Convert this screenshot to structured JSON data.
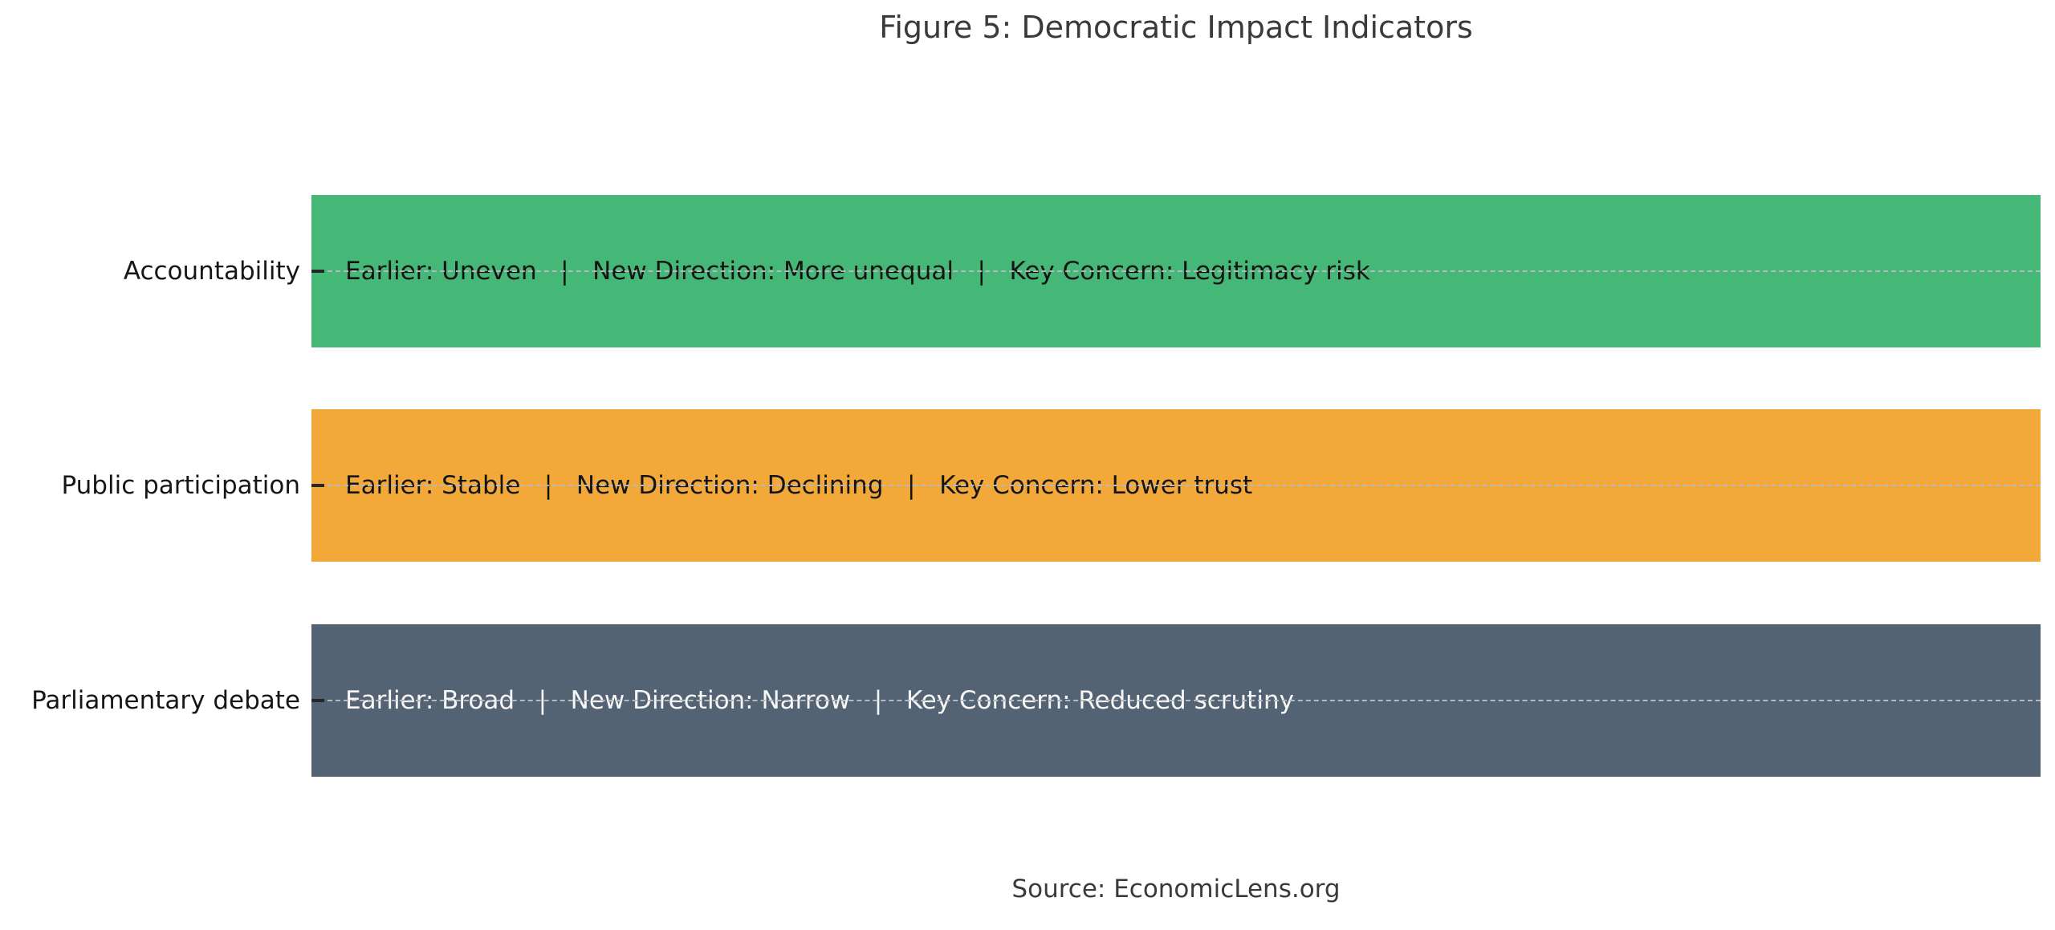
{
  "title": "Figure 5: Democratic Impact Indicators",
  "source_note": "Source: EconomicLens.org",
  "colors": {
    "background": "#ffffff",
    "title_text": "#3a3a3a",
    "axis_label_text": "#161616",
    "grid_line": "#b7babd",
    "tick_mark": "#262626",
    "bar_accountability": "#45b878",
    "bar_public_participation": "#f2a93a",
    "bar_parliamentary_debate": "#546373",
    "bar_text_dark": "#141414",
    "bar_text_light": "#f7f7f7",
    "source_text": "#3a3a3a"
  },
  "chart_data": {
    "type": "bar",
    "orientation": "horizontal",
    "title": "Figure 5: Democratic Impact Indicators",
    "xlabel": "",
    "ylabel": "",
    "legend": "none",
    "grid": "dashed horizontal line through the center of each bar, drawn over the bars",
    "axis_frame": "none (no spines, no x-axis ticks or labels)",
    "categories": [
      "Accountability",
      "Public participation",
      "Parliamentary debate"
    ],
    "values": [
      1.0,
      1.0,
      1.0
    ],
    "value_note": "Qualitative chart: all three bars span the full plot width (equal length)",
    "bars": [
      {
        "category": "Accountability",
        "color": "#45b878",
        "text_color": "#141414",
        "bar_text": "Earlier: Uneven   |   New Direction: More unequal   |   Key Concern: Legitimacy risk",
        "earlier": "Uneven",
        "new_direction": "More unequal",
        "key_concern": "Legitimacy risk"
      },
      {
        "category": "Public participation",
        "color": "#f2a93a",
        "text_color": "#141414",
        "bar_text": "Earlier: Stable   |   New Direction: Declining   |   Key Concern: Lower trust",
        "earlier": "Stable",
        "new_direction": "Declining",
        "key_concern": "Lower trust"
      },
      {
        "category": "Parliamentary debate",
        "color": "#546373",
        "text_color": "#f7f7f7",
        "bar_text": "Earlier: Broad   |   New Direction: Narrow   |   Key Concern: Reduced scrutiny",
        "earlier": "Broad",
        "new_direction": "Narrow",
        "key_concern": "Reduced scrutiny"
      }
    ],
    "source": "Source: EconomicLens.org"
  }
}
